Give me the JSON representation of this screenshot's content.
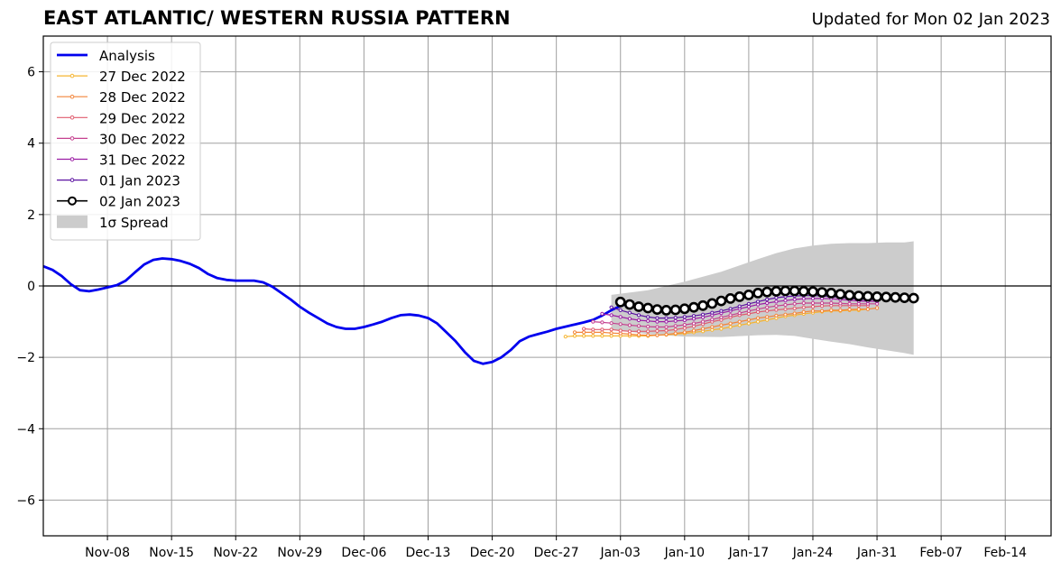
{
  "header": {
    "title": "EAST ATLANTIC/ WESTERN RUSSIA PATTERN",
    "updated": "Updated for Mon 02 Jan 2023"
  },
  "chart_data": {
    "type": "line",
    "title": "EAST ATLANTIC/ WESTERN RUSSIA PATTERN",
    "subtitle": "Updated for Mon 02 Jan 2023",
    "xlabel": "",
    "ylabel": "",
    "x_unit": "days since 2022-11-01",
    "xlim": [
      0,
      110
    ],
    "ylim": [
      -7,
      7
    ],
    "grid": true,
    "legend_position": "top-left",
    "xticks": [
      {
        "x": 7,
        "label": "Nov-08"
      },
      {
        "x": 14,
        "label": "Nov-15"
      },
      {
        "x": 21,
        "label": "Nov-22"
      },
      {
        "x": 28,
        "label": "Nov-29"
      },
      {
        "x": 35,
        "label": "Dec-06"
      },
      {
        "x": 42,
        "label": "Dec-13"
      },
      {
        "x": 49,
        "label": "Dec-20"
      },
      {
        "x": 56,
        "label": "Dec-27"
      },
      {
        "x": 63,
        "label": "Jan-03"
      },
      {
        "x": 70,
        "label": "Jan-10"
      },
      {
        "x": 77,
        "label": "Jan-17"
      },
      {
        "x": 84,
        "label": "Jan-24"
      },
      {
        "x": 91,
        "label": "Jan-31"
      },
      {
        "x": 98,
        "label": "Feb-07"
      },
      {
        "x": 105,
        "label": "Feb-14"
      }
    ],
    "yticks": [
      {
        "y": 6,
        "label": "6"
      },
      {
        "y": 4,
        "label": "4"
      },
      {
        "y": 2,
        "label": "2"
      },
      {
        "y": 0,
        "label": "0"
      },
      {
        "y": -2,
        "label": "−2"
      },
      {
        "y": -4,
        "label": "−4"
      },
      {
        "y": -6,
        "label": "−6"
      }
    ],
    "zero_line": 0,
    "analysis": {
      "name": "Analysis",
      "color": "#0000ee",
      "x0": 0,
      "values": [
        0.55,
        0.45,
        0.28,
        0.05,
        -0.12,
        -0.15,
        -0.1,
        -0.04,
        0.02,
        0.15,
        0.38,
        0.6,
        0.73,
        0.77,
        0.75,
        0.7,
        0.62,
        0.5,
        0.33,
        0.22,
        0.17,
        0.15,
        0.15,
        0.15,
        0.1,
        -0.02,
        -0.2,
        -0.38,
        -0.58,
        -0.75,
        -0.9,
        -1.05,
        -1.15,
        -1.2,
        -1.2,
        -1.15,
        -1.08,
        -1.0,
        -0.9,
        -0.82,
        -0.8,
        -0.83,
        -0.9,
        -1.05,
        -1.3,
        -1.55,
        -1.85,
        -2.1,
        -2.18,
        -2.13,
        -2.0,
        -1.8,
        -1.55,
        -1.42,
        -1.35,
        -1.28,
        -1.2,
        -1.14,
        -1.08,
        -1.02,
        -0.95,
        -0.83,
        -0.68,
        -0.56,
        -0.48
      ]
    },
    "spread": {
      "name": "1σ Spread",
      "color": "#cccccc",
      "x": [
        62,
        66,
        70,
        74,
        78,
        80,
        82,
        84,
        86,
        88,
        90,
        92,
        94,
        95
      ],
      "upper": [
        -0.25,
        -0.12,
        0.12,
        0.4,
        0.75,
        0.92,
        1.05,
        1.13,
        1.18,
        1.2,
        1.2,
        1.22,
        1.22,
        1.25
      ],
      "lower": [
        -1.22,
        -1.35,
        -1.42,
        -1.43,
        -1.38,
        -1.37,
        -1.4,
        -1.48,
        -1.56,
        -1.63,
        -1.72,
        -1.8,
        -1.88,
        -1.93
      ]
    },
    "forecasts": [
      {
        "name": "27 Dec 2022",
        "color": "#f5b531",
        "x0": 57,
        "values": [
          -1.42,
          -1.4,
          -1.4,
          -1.4,
          -1.4,
          -1.4,
          -1.4,
          -1.4,
          -1.4,
          -1.4,
          -1.38,
          -1.37,
          -1.35,
          -1.33,
          -1.3,
          -1.27,
          -1.23,
          -1.2,
          -1.15,
          -1.1,
          -1.05,
          -1.0,
          -0.95,
          -0.9,
          -0.85,
          -0.82,
          -0.78,
          -0.75,
          -0.72,
          -0.7,
          -0.7,
          -0.68,
          -0.68,
          -0.65
        ]
      },
      {
        "name": "28 Dec 2022",
        "color": "#f3853a",
        "x0": 58,
        "values": [
          -1.3,
          -1.3,
          -1.3,
          -1.3,
          -1.32,
          -1.33,
          -1.35,
          -1.37,
          -1.38,
          -1.38,
          -1.36,
          -1.33,
          -1.3,
          -1.25,
          -1.2,
          -1.15,
          -1.1,
          -1.05,
          -1.0,
          -0.95,
          -0.9,
          -0.87,
          -0.83,
          -0.8,
          -0.77,
          -0.73,
          -0.7,
          -0.7,
          -0.68,
          -0.68,
          -0.66,
          -0.65,
          -0.65,
          -0.62
        ]
      },
      {
        "name": "29 Dec 2022",
        "color": "#e05c6e",
        "x0": 59,
        "values": [
          -1.2,
          -1.22,
          -1.22,
          -1.22,
          -1.25,
          -1.27,
          -1.27,
          -1.27,
          -1.26,
          -1.25,
          -1.22,
          -1.18,
          -1.13,
          -1.07,
          -1.0,
          -0.95,
          -0.88,
          -0.82,
          -0.78,
          -0.73,
          -0.7,
          -0.67,
          -0.65,
          -0.63,
          -0.6,
          -0.58,
          -0.56,
          -0.55,
          -0.55,
          -0.55,
          -0.55,
          -0.55
        ]
      },
      {
        "name": "30 Dec 2022",
        "color": "#c5408f",
        "x0": 60,
        "values": [
          -1.0,
          -1.02,
          -1.04,
          -1.07,
          -1.1,
          -1.12,
          -1.14,
          -1.15,
          -1.15,
          -1.12,
          -1.09,
          -1.05,
          -1.0,
          -0.94,
          -0.88,
          -0.82,
          -0.76,
          -0.7,
          -0.65,
          -0.6,
          -0.56,
          -0.53,
          -0.5,
          -0.48,
          -0.48,
          -0.48,
          -0.48,
          -0.49,
          -0.5,
          -0.5,
          -0.5,
          -0.5
        ]
      },
      {
        "name": "31 Dec 2022",
        "color": "#9c1ea5",
        "x0": 61,
        "values": [
          -0.78,
          -0.82,
          -0.87,
          -0.92,
          -0.96,
          -0.98,
          -1.0,
          -1.0,
          -0.98,
          -0.96,
          -0.92,
          -0.88,
          -0.82,
          -0.76,
          -0.7,
          -0.64,
          -0.58,
          -0.52,
          -0.48,
          -0.44,
          -0.41,
          -0.38,
          -0.36,
          -0.35,
          -0.35,
          -0.36,
          -0.38,
          -0.4,
          -0.42,
          -0.43,
          -0.43
        ]
      },
      {
        "name": "01 Jan 2023",
        "color": "#5b12a1",
        "x0": 62,
        "values": [
          -0.6,
          -0.68,
          -0.75,
          -0.82,
          -0.87,
          -0.9,
          -0.9,
          -0.89,
          -0.87,
          -0.84,
          -0.8,
          -0.75,
          -0.7,
          -0.64,
          -0.57,
          -0.5,
          -0.44,
          -0.38,
          -0.33,
          -0.3,
          -0.28,
          -0.27,
          -0.27,
          -0.28,
          -0.3,
          -0.32,
          -0.35,
          -0.37,
          -0.38,
          -0.38
        ]
      },
      {
        "name": "02 Jan 2023",
        "color": "#000000",
        "x0": 63,
        "values": [
          -0.45,
          -0.52,
          -0.58,
          -0.62,
          -0.66,
          -0.68,
          -0.67,
          -0.64,
          -0.6,
          -0.55,
          -0.49,
          -0.42,
          -0.35,
          -0.3,
          -0.25,
          -0.2,
          -0.17,
          -0.15,
          -0.14,
          -0.14,
          -0.15,
          -0.16,
          -0.18,
          -0.2,
          -0.23,
          -0.26,
          -0.28,
          -0.29,
          -0.3,
          -0.31,
          -0.32,
          -0.33,
          -0.34
        ]
      }
    ]
  }
}
